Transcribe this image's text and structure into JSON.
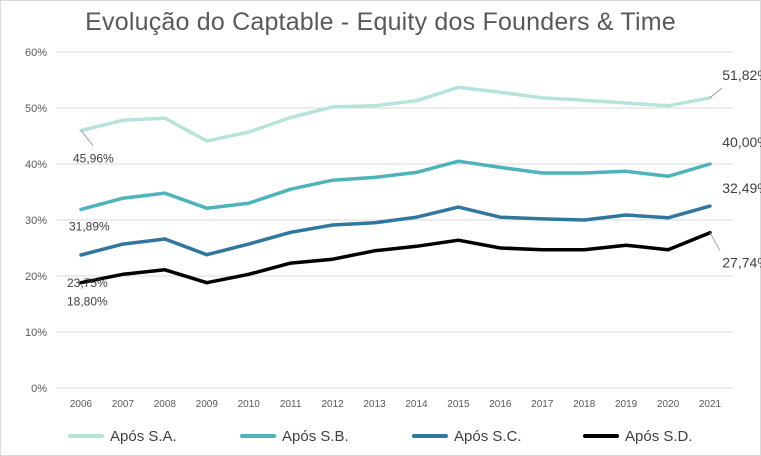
{
  "chart_data": {
    "type": "line",
    "title": "Evolução do Captable - Equity dos Founders & Time",
    "categories": [
      "2006",
      "2007",
      "2008",
      "2009",
      "2010",
      "2011",
      "2012",
      "2013",
      "2014",
      "2015",
      "2016",
      "2017",
      "2018",
      "2019",
      "2020",
      "2021"
    ],
    "ylim": [
      0,
      60
    ],
    "yticks": [
      "0%",
      "10%",
      "20%",
      "30%",
      "40%",
      "50%",
      "60%"
    ],
    "grid": true,
    "legend_position": "bottom",
    "series": [
      {
        "name": "Após S.A.",
        "color": "#b7e4da",
        "values": [
          45.96,
          47.8,
          48.2,
          44.1,
          45.7,
          48.3,
          50.2,
          50.4,
          51.3,
          53.7,
          52.8,
          51.8,
          51.4,
          50.9,
          50.4,
          51.82
        ],
        "first_label": "45,96%",
        "last_label": "51,82%"
      },
      {
        "name": "Após S.B.",
        "color": "#4fb3bb",
        "values": [
          31.89,
          33.9,
          34.8,
          32.1,
          33.0,
          35.5,
          37.1,
          37.6,
          38.5,
          40.5,
          39.4,
          38.4,
          38.4,
          38.7,
          37.8,
          40.0
        ],
        "first_label": "31,89%",
        "last_label": "40,00%"
      },
      {
        "name": "Após S.C.",
        "color": "#31769c",
        "values": [
          23.75,
          25.7,
          26.6,
          23.8,
          25.7,
          27.8,
          29.1,
          29.5,
          30.5,
          32.3,
          30.5,
          30.2,
          30.0,
          30.9,
          30.4,
          32.49
        ],
        "first_label": "23,75%",
        "last_label": "32,49%"
      },
      {
        "name": "Após S.D.",
        "color": "#000000",
        "values": [
          18.8,
          20.3,
          21.1,
          18.8,
          20.3,
          22.3,
          23.0,
          24.5,
          25.3,
          26.4,
          25.0,
          24.7,
          24.7,
          25.5,
          24.7,
          27.74
        ],
        "first_label": "18,80%",
        "last_label": "27,74%"
      }
    ]
  }
}
